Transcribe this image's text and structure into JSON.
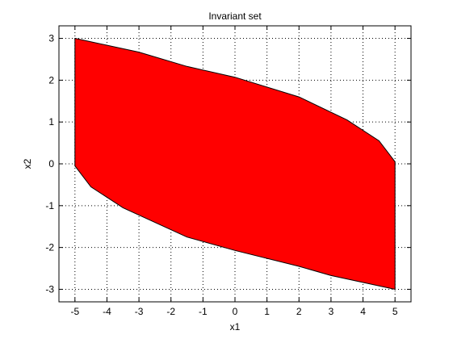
{
  "chart_data": {
    "type": "area",
    "title": "Invariant set",
    "xlabel": "x1",
    "ylabel": "x2",
    "xlim": [
      -5.5,
      5.5
    ],
    "ylim": [
      -3.3,
      3.3
    ],
    "xticks": [
      -5,
      -4,
      -3,
      -2,
      -1,
      0,
      1,
      2,
      3,
      4,
      5
    ],
    "yticks": [
      -3,
      -2,
      -1,
      0,
      1,
      2,
      3
    ],
    "grid": true,
    "grid_style": "dotted",
    "fill_color": "#ff0000",
    "edge_color": "#000000",
    "polygon": {
      "x": [
        -5,
        -3,
        -1.5,
        0,
        2,
        3.5,
        4.5,
        5,
        5,
        3,
        2,
        0,
        -1.5,
        -3.5,
        -4.5,
        -5
      ],
      "y": [
        3,
        2.67,
        2.33,
        2.07,
        1.6,
        1.05,
        0.55,
        0.05,
        -3,
        -2.67,
        -2.45,
        -2.07,
        -1.75,
        -1.05,
        -0.55,
        -0.05
      ]
    }
  }
}
